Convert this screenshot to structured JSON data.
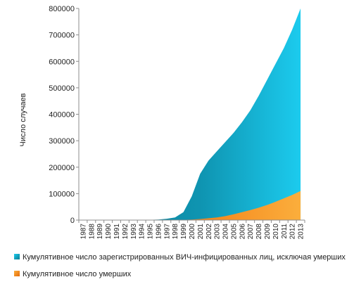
{
  "chart_data": {
    "type": "area",
    "stacked": false,
    "title": "",
    "xlabel": "",
    "ylabel": "Число случаев",
    "ylim": [
      0,
      800000
    ],
    "yticks": [
      0,
      100000,
      200000,
      300000,
      400000,
      500000,
      600000,
      700000,
      800000
    ],
    "grid": false,
    "legend_position": "bottom",
    "x": [
      "1987",
      "1988",
      "1989",
      "1990",
      "1991",
      "1992",
      "1993",
      "1994",
      "1995",
      "1996",
      "1997",
      "1998",
      "1999",
      "2000",
      "2001",
      "2002",
      "2003",
      "2004",
      "2005",
      "2006",
      "2007",
      "2008",
      "2009",
      "2010",
      "2011",
      "2012",
      "2013"
    ],
    "series": [
      {
        "name": "Кумулятивное число зарегистрированных ВИЧ-инфицированных лиц, исключая умерших",
        "color": "#1aa5c8",
        "values": [
          0,
          0,
          0,
          0,
          0,
          0,
          0,
          0,
          1000,
          2000,
          5000,
          10000,
          30000,
          90000,
          175000,
          225000,
          260000,
          295000,
          330000,
          370000,
          415000,
          470000,
          530000,
          590000,
          650000,
          720000,
          800000
        ]
      },
      {
        "name": "Кумулятивное число умерших",
        "color": "#f7931e",
        "values": [
          0,
          0,
          0,
          0,
          0,
          0,
          0,
          0,
          0,
          0,
          0,
          500,
          1000,
          2000,
          4000,
          7000,
          10000,
          15000,
          22000,
          30000,
          38000,
          47000,
          57000,
          69000,
          82000,
          95000,
          110000
        ]
      }
    ]
  }
}
